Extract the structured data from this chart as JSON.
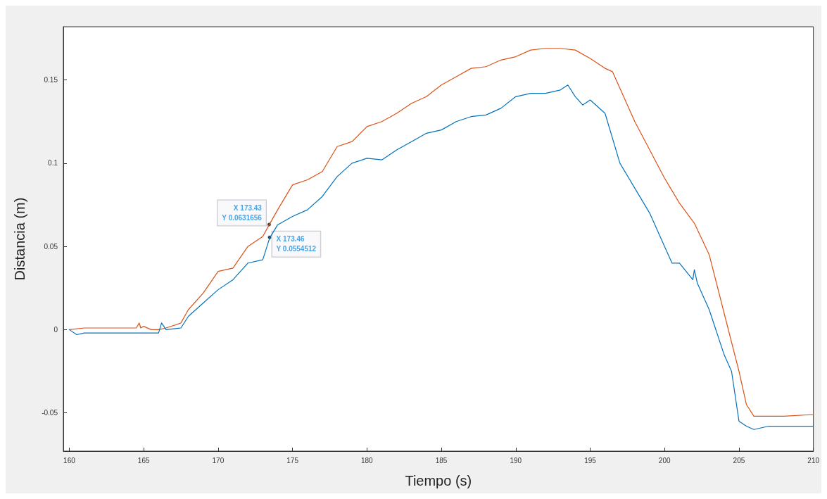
{
  "chart_data": {
    "type": "line",
    "xlabel": "Tiempo (s)",
    "ylabel": "Distancia (m)",
    "xlim": [
      159.6,
      210
    ],
    "ylim": [
      -0.073,
      0.182
    ],
    "xticks": [
      160,
      165,
      170,
      175,
      180,
      185,
      190,
      195,
      200,
      205,
      210
    ],
    "yticks": [
      -0.05,
      0,
      0.05,
      0.1,
      0.15
    ],
    "grid": false,
    "marker": "none",
    "line_style": "solid",
    "annotations": [
      {
        "text": "X 173.43\nY 0.0631656",
        "x": 173.43,
        "y": 0.0631656
      },
      {
        "text": "X 173.46\nY 0.0554512",
        "x": 173.46,
        "y": 0.0554512
      }
    ],
    "series": [
      {
        "color": "#d95319",
        "x": [
          160,
          161,
          164.5,
          164.7,
          164.8,
          165,
          165.5,
          166,
          166.5,
          167.5,
          168,
          169,
          170,
          171,
          172,
          173,
          173.43,
          174,
          175,
          176,
          177,
          178,
          179,
          180,
          181,
          182,
          183,
          184,
          185,
          186,
          187,
          188,
          189,
          190,
          191,
          192,
          193,
          194,
          195,
          196,
          196.5,
          197,
          198,
          199,
          200,
          201,
          202,
          203,
          204,
          205,
          205.5,
          206,
          208,
          210
        ],
        "values": [
          0,
          0.001,
          0.001,
          0.004,
          0.001,
          0.002,
          0,
          0,
          0.001,
          0.004,
          0.012,
          0.022,
          0.035,
          0.037,
          0.05,
          0.056,
          0.063,
          0.072,
          0.087,
          0.09,
          0.095,
          0.11,
          0.113,
          0.122,
          0.125,
          0.13,
          0.136,
          0.14,
          0.147,
          0.152,
          0.157,
          0.158,
          0.162,
          0.164,
          0.168,
          0.169,
          0.169,
          0.168,
          0.163,
          0.157,
          0.155,
          0.145,
          0.125,
          0.108,
          0.091,
          0.076,
          0.064,
          0.045,
          0.01,
          -0.025,
          -0.045,
          -0.052,
          -0.052,
          -0.051
        ]
      },
      {
        "color": "#0072bd",
        "x": [
          160,
          160.5,
          161,
          165,
          166,
          166.2,
          166.5,
          167.5,
          168,
          169,
          170,
          171,
          172,
          173,
          173.46,
          174,
          175,
          176,
          177,
          178,
          179,
          180,
          181,
          182,
          183,
          184,
          185,
          186,
          187,
          188,
          189,
          190,
          191,
          192,
          193,
          193.5,
          194,
          194.5,
          195,
          196,
          197,
          198,
          199,
          200,
          200.5,
          201,
          201.9,
          202,
          202.2,
          203,
          204,
          204.5,
          205,
          205.5,
          206,
          207,
          210
        ],
        "values": [
          0,
          -0.003,
          -0.002,
          -0.002,
          -0.002,
          0.004,
          0,
          0.001,
          0.008,
          0.016,
          0.024,
          0.03,
          0.04,
          0.042,
          0.055,
          0.063,
          0.068,
          0.072,
          0.08,
          0.092,
          0.1,
          0.103,
          0.102,
          0.108,
          0.113,
          0.118,
          0.12,
          0.125,
          0.128,
          0.129,
          0.133,
          0.14,
          0.142,
          0.142,
          0.144,
          0.147,
          0.14,
          0.135,
          0.138,
          0.13,
          0.1,
          0.085,
          0.07,
          0.05,
          0.04,
          0.04,
          0.03,
          0.036,
          0.028,
          0.012,
          -0.015,
          -0.025,
          -0.055,
          -0.058,
          -0.06,
          -0.058,
          -0.058
        ]
      }
    ]
  }
}
